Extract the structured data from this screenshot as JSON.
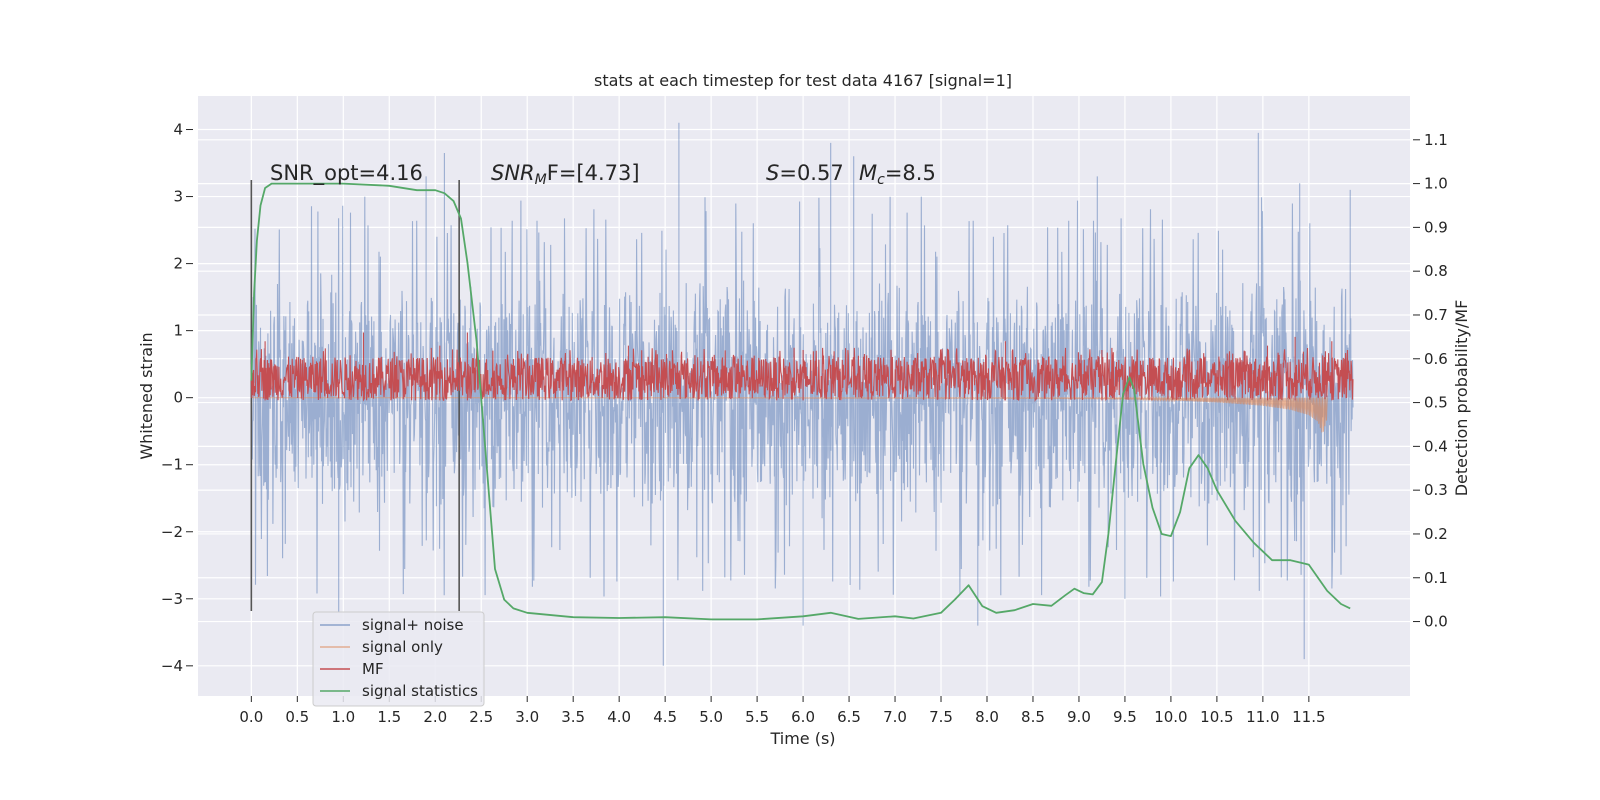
{
  "chart_data": {
    "type": "line",
    "title": "stats at each timestep for test data 4167 [signal=1]",
    "xlabel": "Time (s)",
    "ylabel": "Whitened strain",
    "y2label": "Detection probability/MF",
    "xlim": [
      -0.58,
      12.6
    ],
    "ylim": [
      -4.45,
      4.5
    ],
    "y2lim": [
      -0.17,
      1.2
    ],
    "xticks": [
      0,
      0.5,
      1,
      1.5,
      2,
      2.5,
      3,
      3.5,
      4,
      4.5,
      5,
      5.5,
      6,
      6.5,
      7,
      7.5,
      8,
      8.5,
      9,
      9.5,
      10,
      10.5,
      11,
      11.5
    ],
    "xtick_labels": [
      "0.0",
      "0.5",
      "1.0",
      "1.5",
      "2.0",
      "2.5",
      "3.0",
      "3.5",
      "4.0",
      "4.5",
      "5.0",
      "5.5",
      "6.0",
      "6.5",
      "7.0",
      "7.5",
      "8.0",
      "8.5",
      "9.0",
      "9.5",
      "10.0",
      "10.5",
      "11.0",
      "11.5"
    ],
    "yticks": [
      4,
      3,
      2,
      1,
      0,
      -1,
      -2,
      -3,
      -4
    ],
    "ytick_labels": [
      "4",
      "3",
      "2",
      "1",
      "0",
      "−1",
      "−2",
      "−3",
      "−4"
    ],
    "y2ticks": [
      1.1,
      1.0,
      0.9,
      0.8,
      0.7,
      0.6,
      0.5,
      0.4,
      0.3,
      0.2,
      0.1,
      0.0
    ],
    "y2tick_labels": [
      "1.1",
      "1.0",
      "0.9",
      "0.8",
      "0.7",
      "0.6",
      "0.5",
      "0.4",
      "0.3",
      "0.2",
      "0.1",
      "0.0"
    ],
    "grid": true,
    "legend_position": "bottom-left",
    "annotations": {
      "snr_opt": "SNR_opt=4.16",
      "snr_mf_name": "SNR",
      "snr_mf_sub": "M",
      "snr_mf_rest": "F=[4.73]",
      "s_name": "S",
      "s_rest": "=0.57",
      "mc_name": "M",
      "mc_sub": "c",
      "mc_rest": "=8.5"
    },
    "vertical_markers_x": [
      0.0,
      2.26
    ],
    "series": [
      {
        "name": "signal+ noise",
        "color": "#4c72b0",
        "alpha": 0.5,
        "x_range": [
          0,
          11.98
        ],
        "samples": 2400,
        "typical_band": [
          -1.4,
          1.4
        ],
        "peaks": [
          {
            "x": 0.02,
            "y": 1.5
          },
          {
            "x": 1.9,
            "y": 3.3
          },
          {
            "x": 2.1,
            "y": 3.65
          },
          {
            "x": 4.65,
            "y": 4.1
          },
          {
            "x": 6.3,
            "y": 3.8
          },
          {
            "x": 6.55,
            "y": 3.6
          },
          {
            "x": 9.2,
            "y": 3.3
          },
          {
            "x": 10.95,
            "y": 3.95
          },
          {
            "x": 11.4,
            "y": 3.2
          },
          {
            "x": 11.95,
            "y": 3.1
          }
        ],
        "troughs": [
          {
            "x": 0.95,
            "y": -3.2
          },
          {
            "x": 4.48,
            "y": -4.0
          },
          {
            "x": 6.0,
            "y": -3.4
          },
          {
            "x": 7.9,
            "y": -3.4
          },
          {
            "x": 9.5,
            "y": -3.0
          },
          {
            "x": 11.45,
            "y": -3.9
          }
        ]
      },
      {
        "name": "signal only",
        "color": "#dd8452",
        "alpha": 0.6,
        "x": [
          0,
          8.5,
          9.5,
          10.0,
          10.5,
          11.0,
          11.3,
          11.5,
          11.6,
          11.65,
          11.7
        ],
        "envelope": [
          0,
          0.01,
          0.02,
          0.04,
          0.07,
          0.12,
          0.18,
          0.26,
          0.36,
          0.55,
          0.3
        ]
      },
      {
        "name": "MF",
        "color": "#c44e52",
        "x_range": [
          0,
          11.98
        ],
        "samples": 2400,
        "y2_band": [
          0.505,
          0.605
        ],
        "peaks": [
          {
            "x": 0.15,
            "y2": 0.64
          },
          {
            "x": 1.22,
            "y2": 0.66
          },
          {
            "x": 2.05,
            "y2": 0.63
          },
          {
            "x": 2.35,
            "y2": 0.66
          },
          {
            "x": 4.1,
            "y2": 0.63
          },
          {
            "x": 6.0,
            "y2": 0.62
          },
          {
            "x": 8.2,
            "y2": 0.64
          },
          {
            "x": 9.25,
            "y2": 0.62
          },
          {
            "x": 11.05,
            "y2": 0.63
          },
          {
            "x": 11.35,
            "y2": 0.65
          },
          {
            "x": 11.75,
            "y2": 0.64
          }
        ]
      },
      {
        "name": "signal statistics",
        "color": "#55a868",
        "x": [
          0.0,
          0.03,
          0.06,
          0.1,
          0.15,
          0.22,
          0.3,
          0.5,
          1.0,
          1.5,
          1.8,
          2.0,
          2.1,
          2.2,
          2.28,
          2.35,
          2.45,
          2.55,
          2.65,
          2.75,
          2.85,
          3.0,
          3.5,
          4.0,
          4.5,
          5.0,
          5.5,
          6.0,
          6.3,
          6.6,
          7.0,
          7.2,
          7.5,
          7.65,
          7.8,
          7.95,
          8.1,
          8.3,
          8.5,
          8.7,
          8.85,
          8.95,
          9.05,
          9.15,
          9.25,
          9.32,
          9.4,
          9.48,
          9.55,
          9.6,
          9.7,
          9.8,
          9.9,
          10.0,
          10.1,
          10.2,
          10.3,
          10.4,
          10.5,
          10.7,
          10.9,
          11.1,
          11.3,
          11.5,
          11.7,
          11.85,
          11.95
        ],
        "y2": [
          0.55,
          0.75,
          0.87,
          0.95,
          0.99,
          1.0,
          1.0,
          1.0,
          1.0,
          0.995,
          0.985,
          0.985,
          0.978,
          0.96,
          0.92,
          0.82,
          0.64,
          0.38,
          0.12,
          0.05,
          0.03,
          0.02,
          0.01,
          0.008,
          0.01,
          0.005,
          0.005,
          0.012,
          0.02,
          0.006,
          0.012,
          0.007,
          0.02,
          0.05,
          0.083,
          0.035,
          0.02,
          0.026,
          0.04,
          0.036,
          0.06,
          0.075,
          0.065,
          0.062,
          0.09,
          0.2,
          0.36,
          0.52,
          0.558,
          0.53,
          0.36,
          0.26,
          0.2,
          0.195,
          0.25,
          0.35,
          0.38,
          0.35,
          0.3,
          0.23,
          0.18,
          0.14,
          0.14,
          0.13,
          0.07,
          0.04,
          0.03
        ]
      }
    ]
  }
}
